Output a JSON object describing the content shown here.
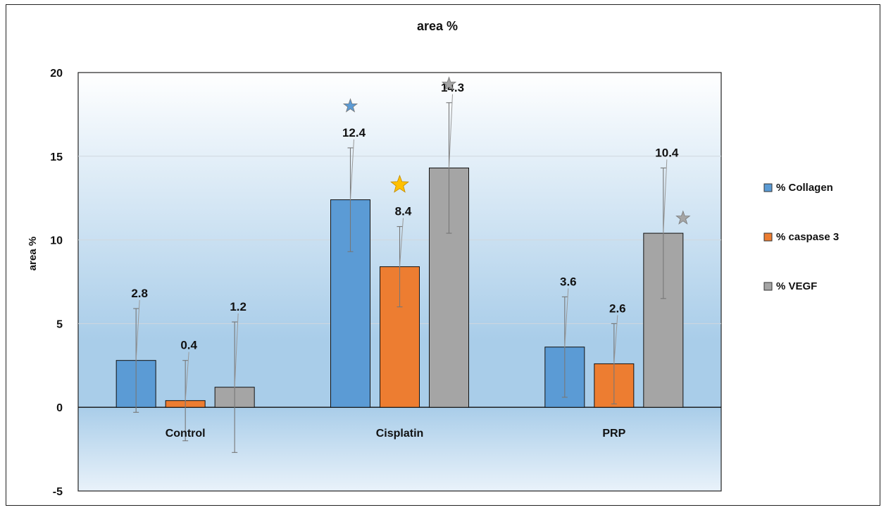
{
  "chart_data": {
    "type": "bar",
    "title": "area %",
    "ylabel": "area %",
    "xlabel": "",
    "ylim": [
      -5,
      20
    ],
    "yticks": [
      -5,
      0,
      5,
      10,
      15,
      20
    ],
    "categories": [
      "Control",
      "Cisplatin",
      "PRP"
    ],
    "grid": true,
    "legend_position": "right",
    "series": [
      {
        "name": "% Collagen",
        "color": "#5b9bd5",
        "values": [
          2.8,
          12.4,
          3.6
        ],
        "errors": [
          3.1,
          3.1,
          3.0
        ],
        "labels": [
          "2.8",
          "12.4",
          "3.6"
        ]
      },
      {
        "name": "% caspase 3",
        "color": "#ed7d31",
        "values": [
          0.4,
          8.4,
          2.6
        ],
        "errors": [
          2.4,
          2.4,
          2.4
        ],
        "labels": [
          "0.4",
          "8.4",
          "2.6"
        ]
      },
      {
        "name": "% VEGF",
        "color": "#a5a5a5",
        "values": [
          1.2,
          14.3,
          10.4
        ],
        "errors": [
          3.9,
          3.9,
          3.9
        ],
        "labels": [
          "1.2",
          "14.3",
          "10.4"
        ]
      }
    ],
    "significance_stars": [
      {
        "category": "Cisplatin",
        "series": "% Collagen",
        "color": "#5b9bd5",
        "y": 18.0
      },
      {
        "category": "Cisplatin",
        "series": "% caspase 3",
        "color": "#ffc000",
        "y": 13.3
      },
      {
        "category": "Cisplatin",
        "series": "% VEGF",
        "color": "#a5a5a5",
        "y": 19.3
      },
      {
        "category": "PRP",
        "series": "% VEGF",
        "color": "#a5a5a5",
        "y": 11.3
      }
    ]
  }
}
